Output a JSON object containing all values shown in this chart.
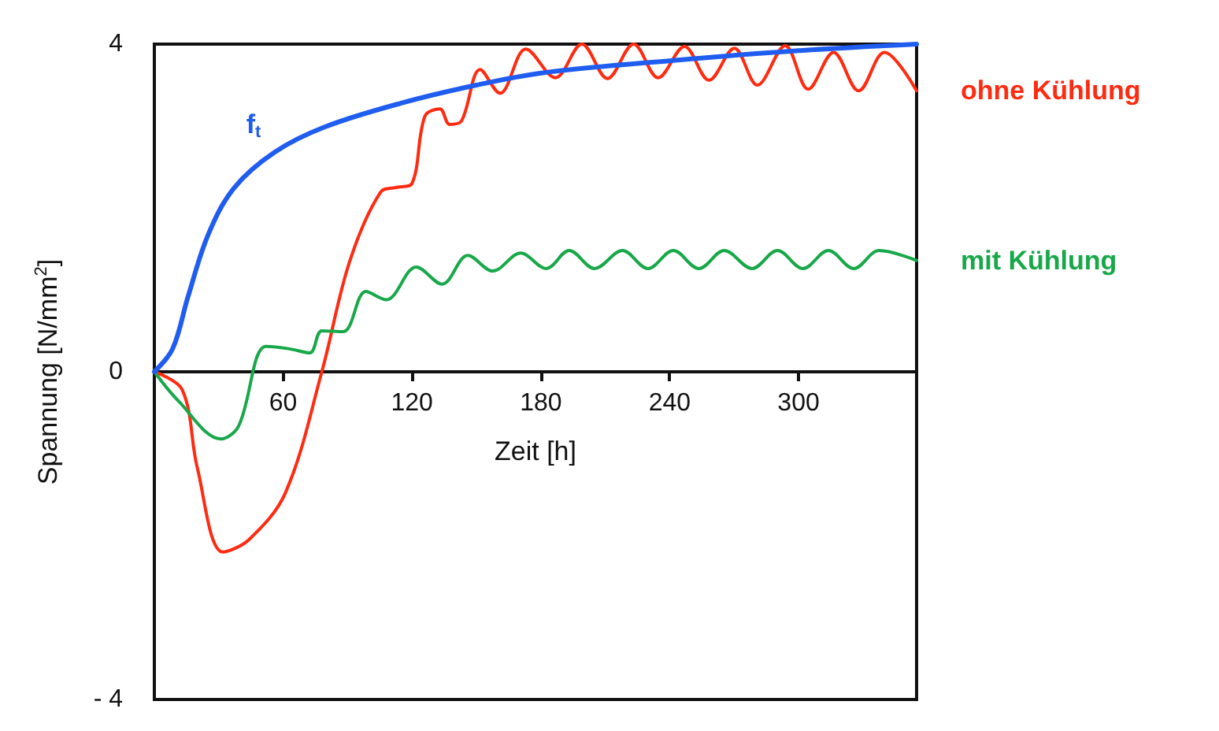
{
  "chart_data": {
    "type": "line",
    "xlabel": "Zeit [h]",
    "ylabel": "Spannung [N/mm$^{2}$]",
    "xlim": [
      0,
      355
    ],
    "xticks": [
      60,
      120,
      180,
      240,
      300
    ],
    "ylim": [
      -4,
      4
    ],
    "yticks": [
      {
        "value": -4,
        "label": "- 4"
      },
      0,
      4
    ],
    "grid": false,
    "legend": false,
    "marker": "none",
    "line_style": "solid",
    "series": [
      {
        "name": "f$_{t}$",
        "color": "#1f5cf0",
        "x": [
          0,
          8.5,
          15.6,
          25,
          37,
          56,
          79.5,
          115,
          150,
          181,
          241.7,
          300,
          355
        ],
        "values": [
          0,
          0.28,
          0.91,
          1.67,
          2.24,
          2.68,
          2.99,
          3.28,
          3.5,
          3.65,
          3.8,
          3.92,
          4.0
        ]
      },
      {
        "name": "ohne Kühlung",
        "color": "#ff2a10",
        "x": [
          0,
          13,
          20,
          32,
          44,
          61,
          78,
          91,
          105.6,
          112.7,
          120,
          126,
          133,
          137.5,
          143,
          151.7,
          161,
          173,
          186.8,
          199.1,
          211,
          223.2,
          234.6,
          246.9,
          258.3,
          270.1,
          280.8,
          293.8,
          304.5,
          316.3,
          328,
          340,
          355
        ],
        "values": [
          0,
          -0.22,
          -1.17,
          -2.2,
          -2.05,
          -1.48,
          0,
          1.35,
          2.2,
          2.25,
          2.3,
          3.12,
          3.21,
          3.02,
          3.06,
          3.69,
          3.4,
          3.94,
          3.59,
          4.0,
          3.58,
          4.0,
          3.59,
          3.97,
          3.56,
          3.95,
          3.5,
          3.98,
          3.45,
          3.9,
          3.43,
          3.9,
          3.43
        ]
      },
      {
        "name": "mit Kühlung",
        "color": "#18a84a",
        "x": [
          0,
          11,
          31,
          39.3,
          52,
          63,
          72.4,
          78,
          88,
          98.5,
          108,
          122,
          134,
          146,
          157.6,
          170.6,
          182.5,
          193.2,
          205,
          218,
          229.9,
          241.7,
          253.6,
          265.4,
          278.4,
          290.2,
          302.1,
          313.9,
          325.8,
          337.6,
          355
        ],
        "values": [
          0,
          -0.35,
          -0.82,
          -0.66,
          0.31,
          0.28,
          0.23,
          0.5,
          0.49,
          0.98,
          0.88,
          1.28,
          1.07,
          1.42,
          1.23,
          1.45,
          1.26,
          1.48,
          1.26,
          1.48,
          1.26,
          1.48,
          1.26,
          1.48,
          1.26,
          1.48,
          1.26,
          1.48,
          1.26,
          1.48,
          1.36
        ]
      }
    ]
  }
}
